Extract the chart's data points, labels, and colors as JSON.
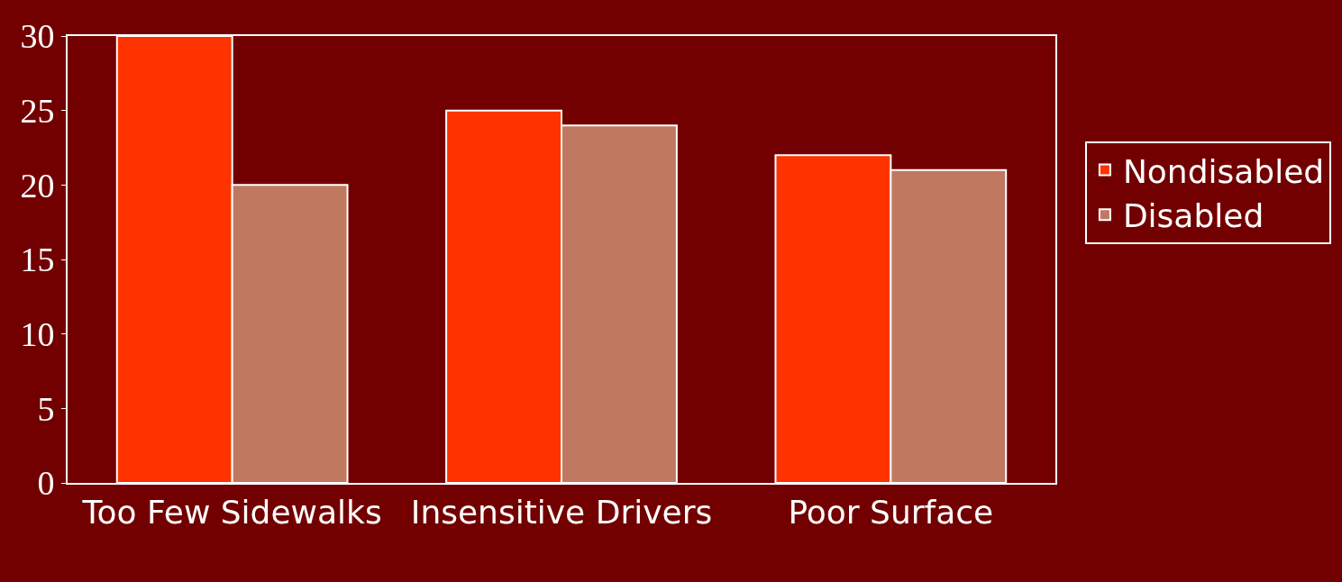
{
  "chart_data": {
    "type": "bar",
    "categories": [
      "Too Few Sidewalks",
      "Insensitive Drivers",
      "Poor Surface"
    ],
    "series": [
      {
        "name": "Nondisabled",
        "color": "#ff3300",
        "values": [
          30,
          25,
          22
        ]
      },
      {
        "name": "Disabled",
        "color": "#c07860",
        "values": [
          20,
          24,
          21
        ]
      }
    ],
    "ylim": [
      0,
      30
    ],
    "yticks": [
      0,
      5,
      10,
      15,
      20,
      25,
      30
    ],
    "grid": false,
    "legend": "right"
  }
}
